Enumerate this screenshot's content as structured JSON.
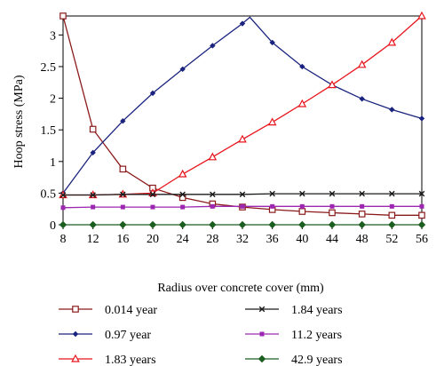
{
  "chart_data": {
    "type": "line",
    "xlabel": "Radius over concrete cover (mm)",
    "ylabel": "Hoop stress (MPa)",
    "xlim": [
      8,
      56
    ],
    "ylim": [
      0,
      3.3
    ],
    "x_ticks": [
      8,
      12,
      16,
      20,
      24,
      28,
      32,
      36,
      40,
      44,
      48,
      52,
      56
    ],
    "y_ticks": [
      0,
      0.5,
      1,
      1.5,
      2,
      2.5,
      3
    ],
    "y_tick_labels": [
      "0",
      "0.5",
      "1",
      "1.5",
      "2",
      "2.5",
      "3"
    ],
    "grid": false,
    "legend_placement": "bottom",
    "series": [
      {
        "name": "0.014 year",
        "color": "#8b1a1a",
        "marker": "square-open",
        "x": [
          8,
          12,
          16,
          20,
          24,
          28,
          32,
          36,
          40,
          44,
          48,
          52,
          56
        ],
        "y": [
          3.3,
          1.51,
          0.88,
          0.58,
          0.43,
          0.33,
          0.28,
          0.24,
          0.21,
          0.19,
          0.17,
          0.15,
          0.15
        ]
      },
      {
        "name": "0.97 year",
        "color": "#1a237e",
        "marker": "diamond-small",
        "x": [
          8,
          12,
          16,
          20,
          24,
          28,
          32,
          33,
          36,
          40,
          44,
          48,
          52,
          56
        ],
        "y": [
          0.5,
          1.14,
          1.64,
          2.08,
          2.46,
          2.83,
          3.18,
          3.28,
          2.88,
          2.5,
          2.21,
          1.99,
          1.82,
          1.68
        ]
      },
      {
        "name": "1.83 years",
        "color": "#e8141b",
        "marker": "triangle-open",
        "x": [
          8,
          12,
          16,
          20,
          24,
          28,
          32,
          36,
          40,
          44,
          48,
          52,
          56
        ],
        "y": [
          0.47,
          0.47,
          0.48,
          0.5,
          0.8,
          1.07,
          1.35,
          1.62,
          1.91,
          2.21,
          2.53,
          2.88,
          3.3
        ]
      },
      {
        "name": "1.84 years",
        "color": "#1a1a1a",
        "marker": "x",
        "x": [
          8,
          12,
          16,
          20,
          24,
          28,
          32,
          36,
          40,
          44,
          48,
          52,
          56
        ],
        "y": [
          0.47,
          0.47,
          0.48,
          0.48,
          0.48,
          0.48,
          0.48,
          0.49,
          0.49,
          0.49,
          0.49,
          0.49,
          0.49
        ]
      },
      {
        "name": "11.2 years",
        "color": "#9c27b0",
        "marker": "square-small",
        "x": [
          8,
          12,
          16,
          20,
          24,
          28,
          32,
          36,
          40,
          44,
          48,
          52,
          56
        ],
        "y": [
          0.27,
          0.28,
          0.28,
          0.28,
          0.28,
          0.29,
          0.29,
          0.29,
          0.29,
          0.29,
          0.29,
          0.29,
          0.29
        ]
      },
      {
        "name": "42.9 years",
        "color": "#1b5e20",
        "marker": "diamond",
        "x": [
          8,
          12,
          16,
          20,
          24,
          28,
          32,
          36,
          40,
          44,
          48,
          52,
          56
        ],
        "y": [
          0,
          0,
          0,
          0,
          0,
          0,
          0,
          0,
          0,
          0,
          0,
          0,
          0
        ]
      }
    ]
  }
}
